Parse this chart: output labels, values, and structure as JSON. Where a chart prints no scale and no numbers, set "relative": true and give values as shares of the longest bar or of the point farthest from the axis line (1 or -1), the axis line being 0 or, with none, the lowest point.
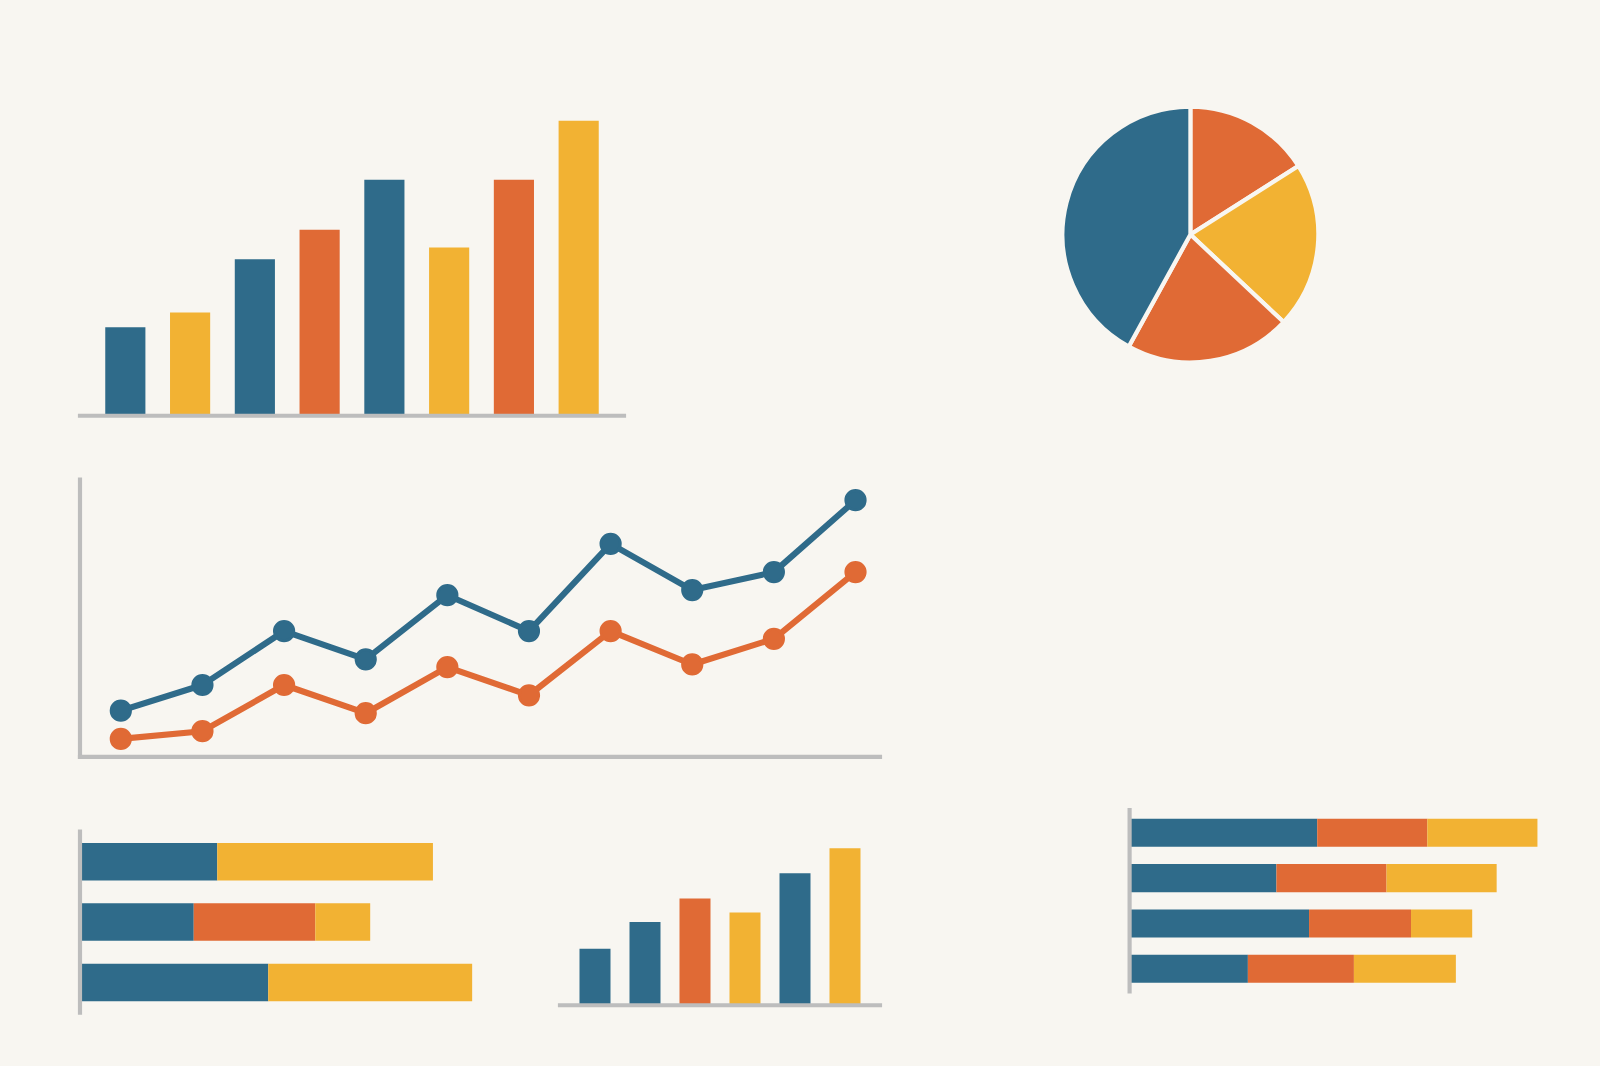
{
  "chart_data": [
    {
      "type": "bar",
      "relative": true,
      "categories": [
        null,
        null,
        null,
        null,
        null,
        null,
        null,
        null
      ],
      "values": [
        0.3,
        0.35,
        0.53,
        0.63,
        0.8,
        0.57,
        0.8,
        1.0
      ],
      "colors": [
        "#2f6b8a",
        "#f2b233",
        "#2f6b8a",
        "#e06a35",
        "#2f6b8a",
        "#f2b233",
        "#e06a35",
        "#f2b233"
      ]
    },
    {
      "type": "pie",
      "categories": [
        null,
        null,
        null,
        null
      ],
      "values": [
        16,
        21,
        21,
        42
      ],
      "colors": [
        "#e06a35",
        "#f2b233",
        "#e06a35",
        "#2f6b8a"
      ]
    },
    {
      "type": "line",
      "relative": true,
      "marker": "circle",
      "line_style": "solid",
      "categories": [
        null,
        null,
        null,
        null,
        null,
        null,
        null,
        null,
        null,
        null
      ],
      "series": [
        {
          "color": "#2f6b8a",
          "values": [
            0.18,
            0.28,
            0.49,
            0.38,
            0.63,
            0.49,
            0.83,
            0.65,
            0.72,
            1.0
          ]
        },
        {
          "color": "#e06a35",
          "values": [
            0.07,
            0.1,
            0.28,
            0.17,
            0.35,
            0.24,
            0.49,
            0.36,
            0.46,
            0.72
          ]
        }
      ]
    },
    {
      "type": "bar",
      "relative": true,
      "orientation": "horizontal",
      "stacked": true,
      "categories": [
        null,
        null,
        null
      ],
      "series": [
        {
          "color": "#2f6b8a",
          "values": [
            0.35,
            0.29,
            0.48
          ]
        },
        {
          "color": "#e06a35",
          "values": [
            null,
            0.31,
            null
          ]
        },
        {
          "color": "#f2b233",
          "values": [
            0.55,
            0.14,
            0.52
          ]
        }
      ]
    },
    {
      "type": "bar",
      "relative": true,
      "categories": [
        null,
        null,
        null,
        null,
        null,
        null
      ],
      "values": [
        0.36,
        0.53,
        0.68,
        0.59,
        0.84,
        1.0
      ],
      "colors": [
        "#2f6b8a",
        "#2f6b8a",
        "#e06a35",
        "#f2b233",
        "#2f6b8a",
        "#f2b233"
      ]
    },
    {
      "type": "bar",
      "relative": true,
      "orientation": "horizontal",
      "stacked": true,
      "categories": [
        null,
        null,
        null,
        null
      ],
      "series": [
        {
          "color": "#2f6b8a",
          "values": [
            0.46,
            0.36,
            0.44,
            0.29
          ]
        },
        {
          "color": "#e06a35",
          "values": [
            0.27,
            0.27,
            0.25,
            0.26
          ]
        },
        {
          "color": "#f2b233",
          "values": [
            0.27,
            0.27,
            0.15,
            0.25
          ]
        }
      ]
    }
  ]
}
